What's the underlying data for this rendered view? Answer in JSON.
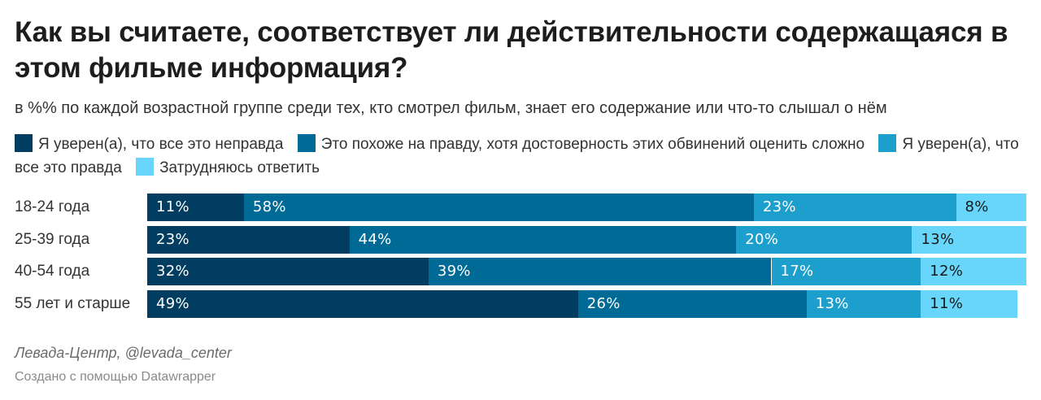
{
  "title": "Как вы считаете, соответствует ли действительности содержащаяся в этом фильме информация?",
  "subtitle": "в %% по каждой возрастной группе среди тех, кто смотрел фильм, знает его содержание или что-то слышал о нём",
  "legend": [
    {
      "label": "Я уверен(а), что все это неправда",
      "color": "#003d61"
    },
    {
      "label": "Это похоже на правду, хотя достоверность этих обвинений оценить сложно",
      "color": "#006a96"
    },
    {
      "label": "Я уверен(а), что все это правда",
      "color": "#1d9fcd"
    },
    {
      "label": "Затрудняюсь ответить",
      "color": "#67d6fa"
    }
  ],
  "source": "Левада-Центр, @levada_center",
  "credit": "Создано с помощью Datawrapper",
  "chart_data": {
    "type": "bar",
    "orientation": "horizontal",
    "stacked": true,
    "categories": [
      "18-24 года",
      "25-39 года",
      "40-54 года",
      "55 лет и старше"
    ],
    "series": [
      {
        "name": "Я уверен(а), что все это неправда",
        "values": [
          11,
          23,
          32,
          49
        ],
        "color": "#003d61",
        "label_color": "#ffffff"
      },
      {
        "name": "Это похоже на правду, хотя достоверность этих обвинений оценить сложно",
        "values": [
          58,
          44,
          39,
          26
        ],
        "color": "#006a96",
        "label_color": "#ffffff"
      },
      {
        "name": "Я уверен(а), что все это правда",
        "values": [
          23,
          20,
          17,
          13
        ],
        "color": "#1d9fcd",
        "label_color": "#ffffff"
      },
      {
        "name": "Затрудняюсь ответить",
        "values": [
          8,
          13,
          12,
          11
        ],
        "color": "#67d6fa",
        "label_color": "#1a1a1a"
      }
    ],
    "value_suffix": "%",
    "xlim": [
      0,
      100
    ]
  }
}
